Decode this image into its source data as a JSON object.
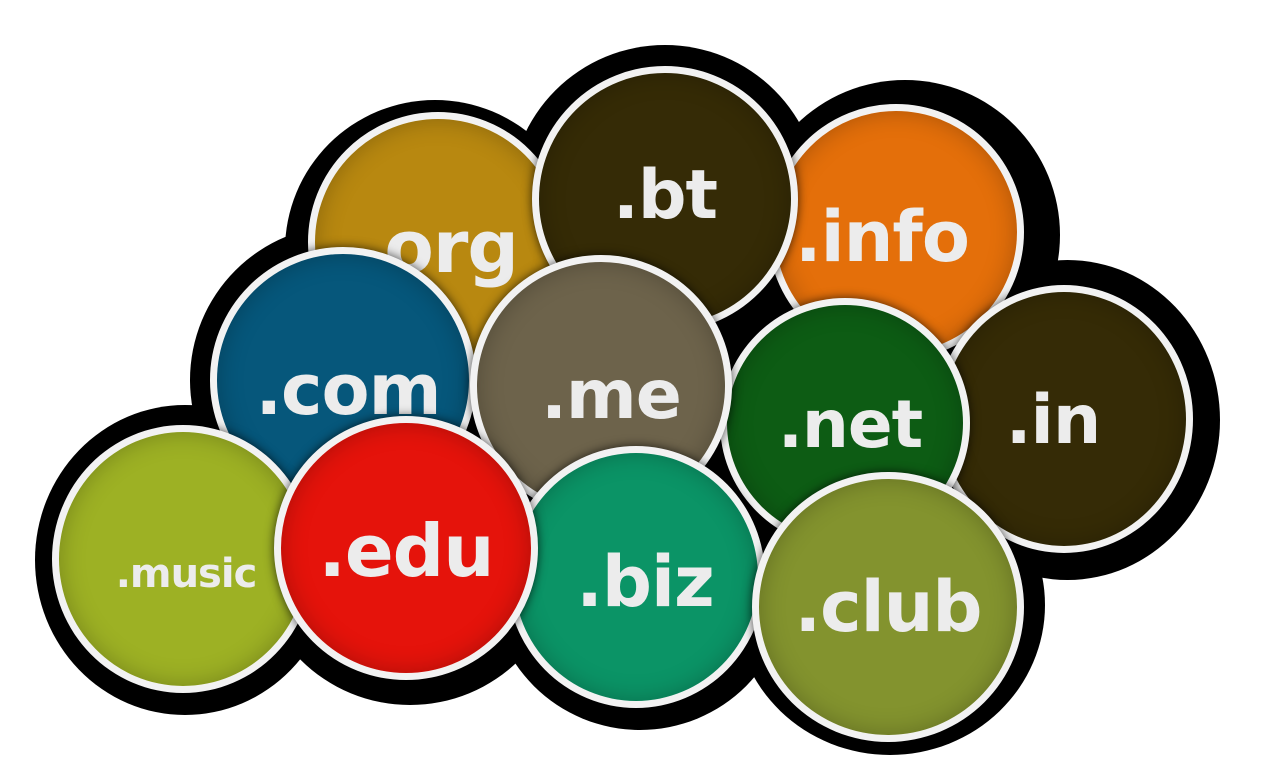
{
  "domains": {
    "org": ".org",
    "bt": ".bt",
    "info": ".info",
    "com": ".com",
    "me": ".me",
    "net": ".net",
    "in": ".in",
    "music": ".music",
    "edu": ".edu",
    "biz": ".biz",
    "club": ".club"
  },
  "colors": {
    "org": "#b88810",
    "bt": "#352b06",
    "info": "#e46f0a",
    "com": "#06577b",
    "me": "#6d634b",
    "net": "#0d5c14",
    "in": "#352b06",
    "music": "#9db124",
    "edu": "#e5130b",
    "biz": "#0b9466",
    "club": "#83932e",
    "outline": "#000000",
    "ring": "#f2f2f2",
    "text": "#ececec"
  }
}
